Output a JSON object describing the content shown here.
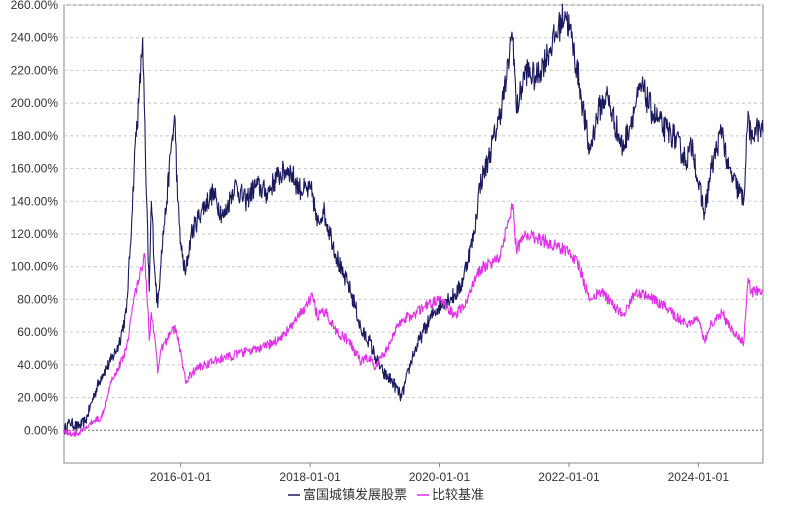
{
  "chart_data": {
    "type": "line",
    "title": "",
    "xlabel": "",
    "ylabel": "",
    "y_unit": "%",
    "x_range": [
      "2014-03-14",
      "2024-12-31"
    ],
    "ylim": [
      -20,
      260
    ],
    "y_ticks": [
      0,
      20,
      40,
      60,
      80,
      100,
      120,
      140,
      160,
      180,
      200,
      220,
      240,
      260
    ],
    "y_tick_labels": [
      "0.00%",
      "20.00%",
      "40.00%",
      "60.00%",
      "80.00%",
      "100.00%",
      "120.00%",
      "140.00%",
      "160.00%",
      "180.00%",
      "200.00%",
      "220.00%",
      "240.00%",
      "260.00%"
    ],
    "x_ticks": [
      "2016-01-01",
      "2018-01-01",
      "2020-01-01",
      "2022-01-01",
      "2024-01-01"
    ],
    "x_tick_labels": [
      "2016-01-01",
      "2018-01-01",
      "2020-01-01",
      "2022-01-01",
      "2024-01-01"
    ],
    "grid": "horizontal dashed",
    "legend_position": "bottom-center",
    "series": [
      {
        "name": "富国城镇发展股票",
        "color": "#1b1a5e",
        "points": [
          [
            "2014-03-14",
            0
          ],
          [
            "2014-04-15",
            5
          ],
          [
            "2014-06-01",
            2
          ],
          [
            "2014-07-15",
            6
          ],
          [
            "2014-09-01",
            22
          ],
          [
            "2014-10-15",
            34
          ],
          [
            "2014-12-01",
            42
          ],
          [
            "2015-01-15",
            52
          ],
          [
            "2015-03-01",
            72
          ],
          [
            "2015-04-01",
            130
          ],
          [
            "2015-04-20",
            175
          ],
          [
            "2015-05-10",
            200
          ],
          [
            "2015-06-01",
            240
          ],
          [
            "2015-06-20",
            150
          ],
          [
            "2015-07-08",
            85
          ],
          [
            "2015-07-20",
            140
          ],
          [
            "2015-08-10",
            95
          ],
          [
            "2015-08-25",
            75
          ],
          [
            "2015-09-15",
            110
          ],
          [
            "2015-10-15",
            140
          ],
          [
            "2015-11-10",
            175
          ],
          [
            "2015-12-01",
            190
          ],
          [
            "2015-12-15",
            140
          ],
          [
            "2016-01-05",
            110
          ],
          [
            "2016-01-28",
            95
          ],
          [
            "2016-03-01",
            120
          ],
          [
            "2016-05-01",
            135
          ],
          [
            "2016-07-01",
            145
          ],
          [
            "2016-09-01",
            130
          ],
          [
            "2016-11-01",
            150
          ],
          [
            "2017-01-01",
            140
          ],
          [
            "2017-03-01",
            150
          ],
          [
            "2017-05-01",
            145
          ],
          [
            "2017-07-01",
            155
          ],
          [
            "2017-09-01",
            160
          ],
          [
            "2017-11-01",
            148
          ],
          [
            "2018-01-15",
            145
          ],
          [
            "2018-02-09",
            125
          ],
          [
            "2018-03-15",
            135
          ],
          [
            "2018-05-01",
            118
          ],
          [
            "2018-07-01",
            95
          ],
          [
            "2018-08-01",
            90
          ],
          [
            "2018-09-15",
            75
          ],
          [
            "2018-10-18",
            60
          ],
          [
            "2018-12-01",
            55
          ],
          [
            "2019-01-03",
            45
          ],
          [
            "2019-02-15",
            35
          ],
          [
            "2019-04-10",
            30
          ],
          [
            "2019-06-01",
            20
          ],
          [
            "2019-08-01",
            45
          ],
          [
            "2019-10-01",
            60
          ],
          [
            "2019-12-01",
            72
          ],
          [
            "2020-02-03",
            80
          ],
          [
            "2020-03-23",
            82
          ],
          [
            "2020-05-01",
            88
          ],
          [
            "2020-07-15",
            120
          ],
          [
            "2020-08-15",
            150
          ],
          [
            "2020-10-01",
            165
          ],
          [
            "2020-12-01",
            190
          ],
          [
            "2021-01-15",
            215
          ],
          [
            "2021-02-10",
            241
          ],
          [
            "2021-02-20",
            240
          ],
          [
            "2021-03-10",
            195
          ],
          [
            "2021-05-01",
            220
          ],
          [
            "2021-07-01",
            215
          ],
          [
            "2021-09-01",
            230
          ],
          [
            "2021-11-01",
            245
          ],
          [
            "2021-12-10",
            256
          ],
          [
            "2022-01-15",
            240
          ],
          [
            "2022-03-01",
            212
          ],
          [
            "2022-04-26",
            170
          ],
          [
            "2022-06-15",
            195
          ],
          [
            "2022-08-01",
            205
          ],
          [
            "2022-10-31",
            172
          ],
          [
            "2023-01-15",
            200
          ],
          [
            "2023-02-15",
            210
          ],
          [
            "2023-04-15",
            195
          ],
          [
            "2023-06-15",
            185
          ],
          [
            "2023-08-15",
            180
          ],
          [
            "2023-10-23",
            165
          ],
          [
            "2023-12-01",
            175
          ],
          [
            "2024-01-01",
            150
          ],
          [
            "2024-02-05",
            133
          ],
          [
            "2024-03-15",
            160
          ],
          [
            "2024-05-15",
            185
          ],
          [
            "2024-06-15",
            160
          ],
          [
            "2024-09-13",
            140
          ],
          [
            "2024-10-08",
            195
          ],
          [
            "2024-10-25",
            175
          ],
          [
            "2024-11-15",
            185
          ],
          [
            "2024-12-31",
            182
          ]
        ]
      },
      {
        "name": "比较基准",
        "color": "#e22fe8",
        "points": [
          [
            "2014-03-14",
            0
          ],
          [
            "2014-04-15",
            -2
          ],
          [
            "2014-06-01",
            -2
          ],
          [
            "2014-07-15",
            1
          ],
          [
            "2014-09-01",
            6
          ],
          [
            "2014-10-15",
            8
          ],
          [
            "2014-12-01",
            30
          ],
          [
            "2015-01-15",
            38
          ],
          [
            "2015-03-01",
            50
          ],
          [
            "2015-04-15",
            82
          ],
          [
            "2015-05-10",
            92
          ],
          [
            "2015-06-12",
            108
          ],
          [
            "2015-06-30",
            75
          ],
          [
            "2015-07-08",
            55
          ],
          [
            "2015-07-20",
            72
          ],
          [
            "2015-08-10",
            55
          ],
          [
            "2015-08-25",
            35
          ],
          [
            "2015-09-15",
            50
          ],
          [
            "2015-10-15",
            55
          ],
          [
            "2015-11-15",
            63
          ],
          [
            "2015-12-10",
            60
          ],
          [
            "2016-01-05",
            45
          ],
          [
            "2016-01-28",
            30
          ],
          [
            "2016-04-01",
            38
          ],
          [
            "2016-07-01",
            42
          ],
          [
            "2016-10-01",
            45
          ],
          [
            "2017-01-01",
            48
          ],
          [
            "2017-04-01",
            50
          ],
          [
            "2017-07-01",
            55
          ],
          [
            "2017-10-01",
            65
          ],
          [
            "2018-01-15",
            82
          ],
          [
            "2018-02-09",
            70
          ],
          [
            "2018-04-01",
            72
          ],
          [
            "2018-06-01",
            60
          ],
          [
            "2018-08-01",
            55
          ],
          [
            "2018-10-18",
            42
          ],
          [
            "2018-12-01",
            45
          ],
          [
            "2019-01-03",
            38
          ],
          [
            "2019-03-01",
            48
          ],
          [
            "2019-04-15",
            58
          ],
          [
            "2019-06-01",
            68
          ],
          [
            "2019-08-01",
            70
          ],
          [
            "2019-10-01",
            75
          ],
          [
            "2020-01-01",
            80
          ],
          [
            "2020-03-23",
            70
          ],
          [
            "2020-06-01",
            78
          ],
          [
            "2020-07-15",
            92
          ],
          [
            "2020-09-01",
            100
          ],
          [
            "2020-12-01",
            105
          ],
          [
            "2021-02-18",
            138
          ],
          [
            "2021-03-10",
            110
          ],
          [
            "2021-05-01",
            120
          ],
          [
            "2021-07-01",
            118
          ],
          [
            "2021-09-01",
            115
          ],
          [
            "2021-11-01",
            112
          ],
          [
            "2022-01-01",
            110
          ],
          [
            "2022-03-01",
            100
          ],
          [
            "2022-04-26",
            80
          ],
          [
            "2022-07-01",
            85
          ],
          [
            "2022-10-31",
            70
          ],
          [
            "2023-01-15",
            85
          ],
          [
            "2023-04-15",
            80
          ],
          [
            "2023-07-01",
            75
          ],
          [
            "2023-10-23",
            65
          ],
          [
            "2024-01-01",
            68
          ],
          [
            "2024-02-05",
            55
          ],
          [
            "2024-03-15",
            65
          ],
          [
            "2024-05-15",
            72
          ],
          [
            "2024-06-15",
            65
          ],
          [
            "2024-09-13",
            53
          ],
          [
            "2024-10-08",
            93
          ],
          [
            "2024-10-25",
            84
          ],
          [
            "2024-12-31",
            86
          ]
        ]
      }
    ]
  }
}
